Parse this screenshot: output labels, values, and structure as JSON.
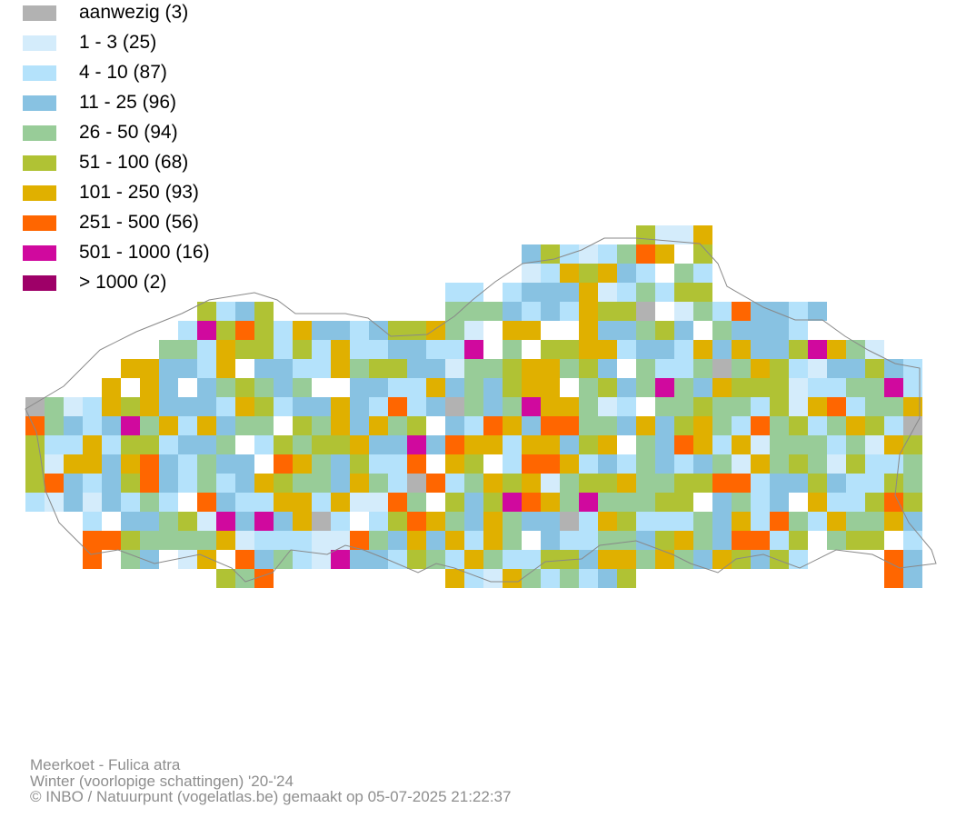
{
  "legend": [
    {
      "label": "aanwezig (3)",
      "color": "#b2b2b2"
    },
    {
      "label": "1 - 3 (25)",
      "color": "#d4ecfb"
    },
    {
      "label": "4 - 10 (87)",
      "color": "#b4e2fb"
    },
    {
      "label": "11 - 25 (96)",
      "color": "#88c2e2"
    },
    {
      "label": "26 - 50 (94)",
      "color": "#98cc98"
    },
    {
      "label": "51 - 100 (68)",
      "color": "#b0c234"
    },
    {
      "label": "101 - 250 (93)",
      "color": "#e0b000"
    },
    {
      "label": "251 - 500 (56)",
      "color": "#ff6600"
    },
    {
      "label": "501 - 1000 (16)",
      "color": "#d0099e"
    },
    {
      "label": "> 1000 (2)",
      "color": "#9e0068"
    }
  ],
  "footer": {
    "species": "Meerkoet - Fulica atra",
    "season": "Winter (voorlopige schattingen) '20-'24",
    "credit": "© INBO / Natuurpunt (vogelatlas.be) gemaakt op 05-07-2025 21:22:37"
  }
}
